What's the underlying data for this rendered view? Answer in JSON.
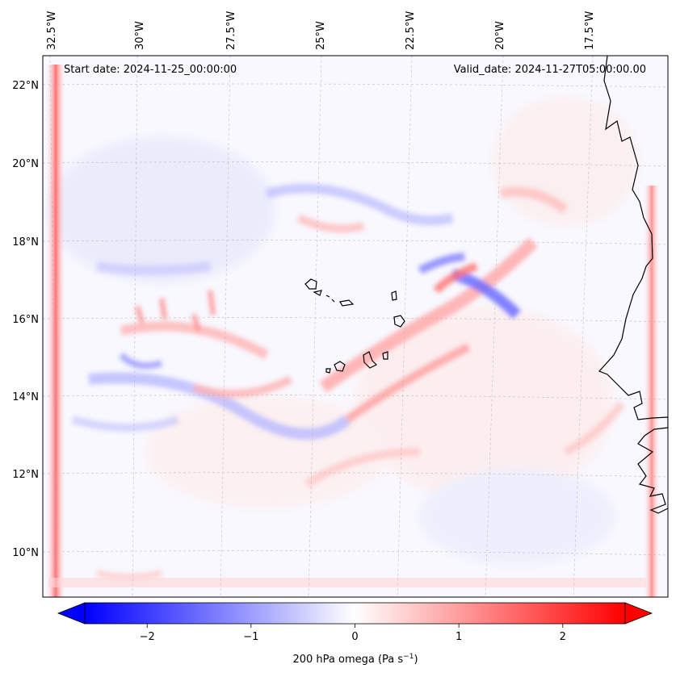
{
  "header": {
    "start_date": "Start date: 2024-11-25_00:00:00",
    "valid_date": "Valid_date: 2024-11-27T05:00:00.00"
  },
  "map": {
    "lon_ticks": [
      "32.5°W",
      "30°W",
      "27.5°W",
      "25°W",
      "22.5°W",
      "20°W",
      "17.5°W"
    ],
    "lat_ticks": [
      "22°N",
      "20°N",
      "18°N",
      "16°N",
      "14°N",
      "12°N",
      "10°N"
    ],
    "field_colors": {
      "negative": "#0000ff",
      "zero": "#ffffff",
      "positive": "#ff0000"
    }
  },
  "colorbar": {
    "ticks": [
      "−2",
      "−1",
      "0",
      "1",
      "2"
    ],
    "tick_values": [
      -2,
      -1,
      0,
      1,
      2
    ],
    "vmin": -2.6,
    "vmax": 2.6,
    "label_main": "200 hPa omega (Pa s",
    "label_sup": "−1",
    "label_end": ")"
  }
}
